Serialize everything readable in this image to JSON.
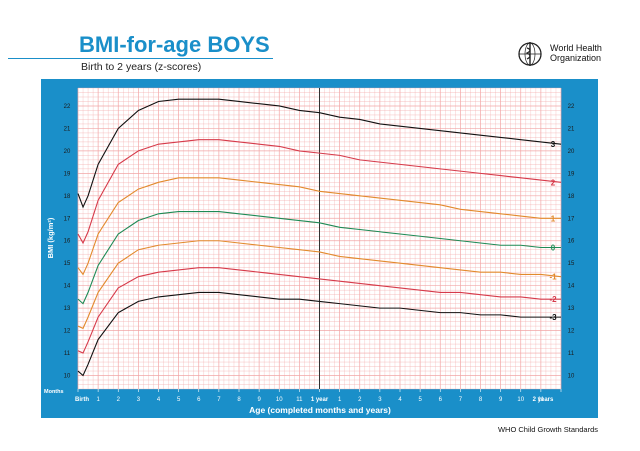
{
  "header": {
    "title": "BMI-for-age BOYS",
    "subtitle": "Birth to 2 years (z-scores)",
    "org_line1": "World Health",
    "org_line2": "Organization"
  },
  "footer": {
    "note": "WHO Child Growth Standards"
  },
  "colors": {
    "frame": "#1a8fc9",
    "grid": "#f2a6a6",
    "z3": "#111111",
    "z2": "#d63a4a",
    "z1": "#e28a2d",
    "z0": "#1e8a55"
  },
  "chart_data": {
    "type": "line",
    "ylabel": "BMI (kg/m²)",
    "xlabel": "Age (completed months and years)",
    "months_label": "Months",
    "x_tick_labels": [
      "Birth",
      "1",
      "2",
      "3",
      "4",
      "5",
      "6",
      "7",
      "8",
      "9",
      "10",
      "11",
      "1 year",
      "1",
      "2",
      "3",
      "4",
      "5",
      "6",
      "7",
      "8",
      "9",
      "10",
      "11",
      "2 years"
    ],
    "ylim": [
      9.4,
      22.8
    ],
    "y_ticks": [
      10,
      11,
      12,
      13,
      14,
      15,
      16,
      17,
      18,
      19,
      20,
      21,
      22
    ],
    "x": [
      0,
      0.25,
      0.5,
      1,
      2,
      3,
      4,
      5,
      6,
      7,
      8,
      9,
      10,
      11,
      12,
      13,
      14,
      15,
      16,
      17,
      18,
      19,
      20,
      21,
      22,
      23,
      24
    ],
    "series": [
      {
        "name": "3",
        "color": "#111111",
        "values": [
          18.1,
          17.5,
          18.0,
          19.4,
          21.0,
          21.8,
          22.2,
          22.3,
          22.3,
          22.3,
          22.2,
          22.1,
          22.0,
          21.8,
          21.7,
          21.5,
          21.4,
          21.2,
          21.1,
          21.0,
          20.9,
          20.8,
          20.7,
          20.6,
          20.5,
          20.4,
          20.3
        ]
      },
      {
        "name": "2",
        "color": "#d63a4a",
        "values": [
          16.3,
          15.9,
          16.4,
          17.8,
          19.4,
          20.0,
          20.3,
          20.4,
          20.5,
          20.5,
          20.4,
          20.3,
          20.2,
          20.0,
          19.9,
          19.8,
          19.6,
          19.5,
          19.4,
          19.3,
          19.2,
          19.1,
          19.0,
          18.9,
          18.8,
          18.7,
          18.6
        ]
      },
      {
        "name": "1",
        "color": "#e28a2d",
        "values": [
          14.8,
          14.5,
          15.0,
          16.3,
          17.7,
          18.3,
          18.6,
          18.8,
          18.8,
          18.8,
          18.7,
          18.6,
          18.5,
          18.4,
          18.2,
          18.1,
          18.0,
          17.9,
          17.8,
          17.7,
          17.6,
          17.4,
          17.3,
          17.2,
          17.1,
          17.0,
          17.0
        ]
      },
      {
        "name": "0",
        "color": "#1e8a55",
        "values": [
          13.4,
          13.2,
          13.7,
          14.9,
          16.3,
          16.9,
          17.2,
          17.3,
          17.3,
          17.3,
          17.2,
          17.1,
          17.0,
          16.9,
          16.8,
          16.6,
          16.5,
          16.4,
          16.3,
          16.2,
          16.1,
          16.0,
          15.9,
          15.8,
          15.8,
          15.7,
          15.7
        ]
      },
      {
        "name": "-1",
        "color": "#e28a2d",
        "values": [
          12.2,
          12.1,
          12.6,
          13.7,
          15.0,
          15.6,
          15.8,
          15.9,
          16.0,
          16.0,
          15.9,
          15.8,
          15.7,
          15.6,
          15.5,
          15.3,
          15.2,
          15.1,
          15.0,
          14.9,
          14.8,
          14.7,
          14.6,
          14.6,
          14.5,
          14.5,
          14.4
        ]
      },
      {
        "name": "-2",
        "color": "#d63a4a",
        "values": [
          11.1,
          11.0,
          11.5,
          12.6,
          13.9,
          14.4,
          14.6,
          14.7,
          14.8,
          14.8,
          14.7,
          14.6,
          14.5,
          14.4,
          14.3,
          14.2,
          14.1,
          14.0,
          13.9,
          13.8,
          13.7,
          13.7,
          13.6,
          13.5,
          13.5,
          13.4,
          13.4
        ]
      },
      {
        "name": "-3",
        "color": "#111111",
        "values": [
          10.2,
          10.0,
          10.5,
          11.6,
          12.8,
          13.3,
          13.5,
          13.6,
          13.7,
          13.7,
          13.6,
          13.5,
          13.4,
          13.4,
          13.3,
          13.2,
          13.1,
          13.0,
          13.0,
          12.9,
          12.8,
          12.8,
          12.7,
          12.7,
          12.6,
          12.6,
          12.6
        ]
      }
    ]
  }
}
